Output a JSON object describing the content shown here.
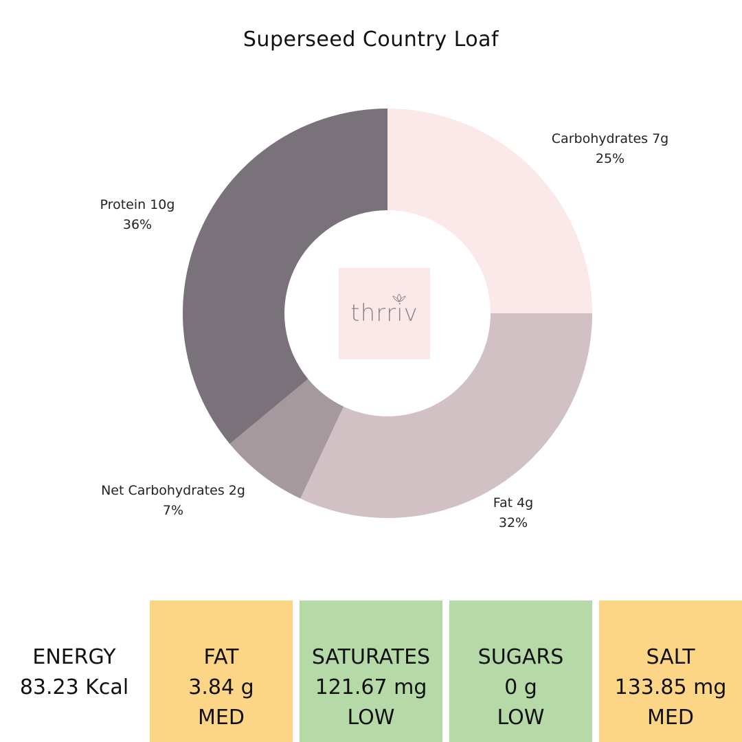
{
  "title": "Superseed Country Loaf",
  "logo_text": "thrriv",
  "chart_data": {
    "type": "pie",
    "donut": true,
    "title": "Superseed Country Loaf",
    "slices": [
      {
        "label": "Carbohydrates 7g",
        "percent_label": "25%",
        "value": 25,
        "color": "#fbe8e8"
      },
      {
        "label": "Fat 4g",
        "percent_label": "32%",
        "value": 32,
        "color": "#d1c1c4"
      },
      {
        "label": "Net Carbohydrates 2g",
        "percent_label": "7%",
        "value": 7,
        "color": "#a6999e"
      },
      {
        "label": "Protein 10g",
        "percent_label": "36%",
        "value": 36,
        "color": "#7a727b"
      }
    ]
  },
  "energy": {
    "label": "ENERGY",
    "value": "83.23 Kcal"
  },
  "tiles": [
    {
      "label": "FAT",
      "value": "3.84 g",
      "level": "MED",
      "color": "#fdd587"
    },
    {
      "label": "SATURATES",
      "value": "121.67 mg",
      "level": "LOW",
      "color": "#b6d9a8"
    },
    {
      "label": "SUGARS",
      "value": "0 g",
      "level": "LOW",
      "color": "#b6d9a8"
    },
    {
      "label": "SALT",
      "value": "133.85 mg",
      "level": "MED",
      "color": "#fdd587"
    }
  ]
}
